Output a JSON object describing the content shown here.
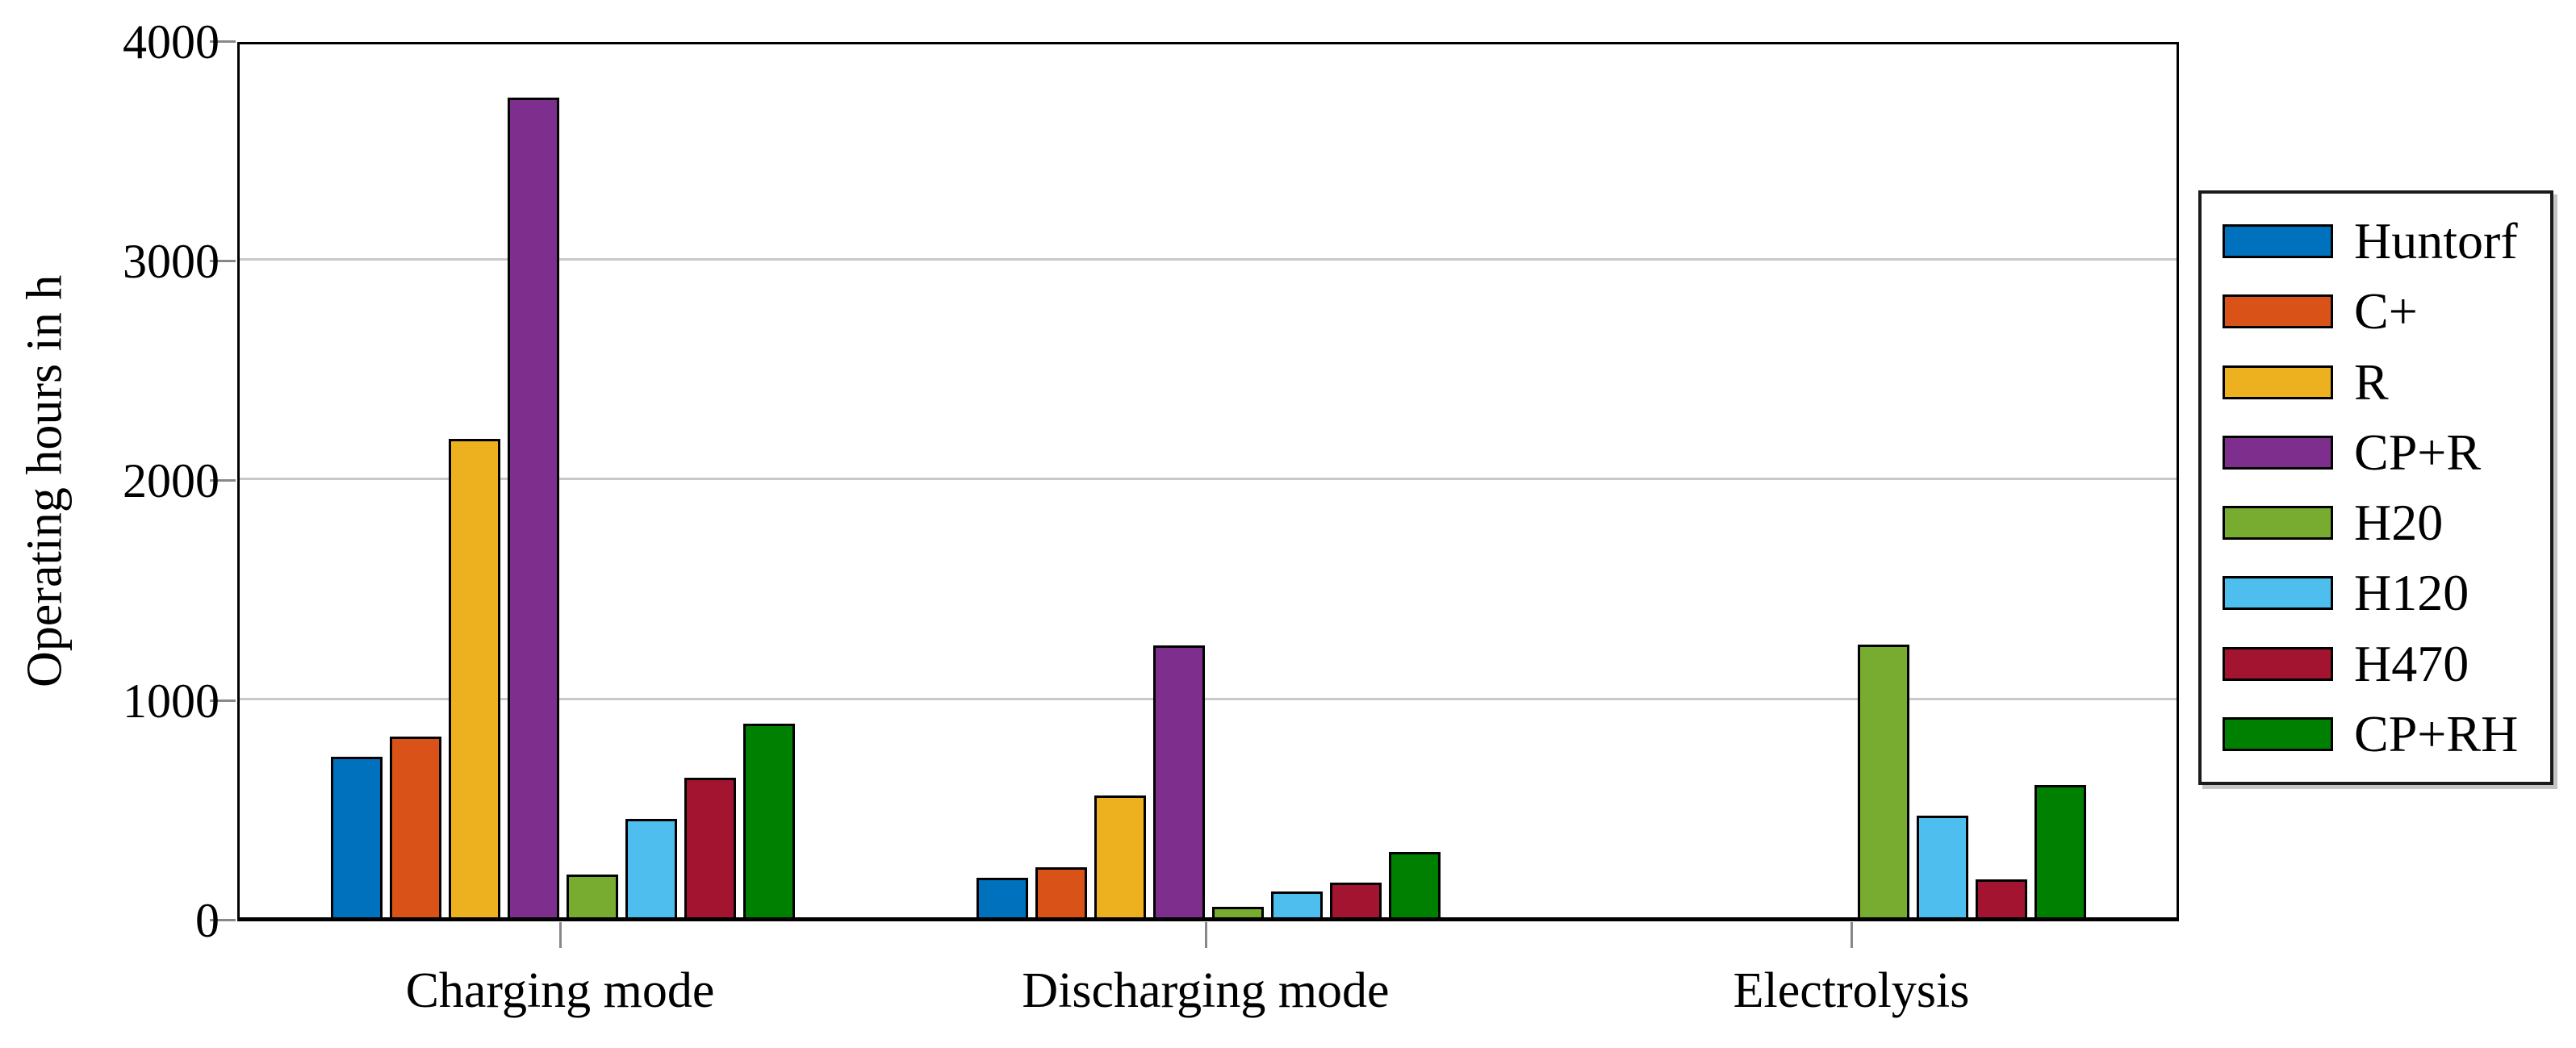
{
  "chart_data": {
    "type": "bar",
    "title": "",
    "ylabel": "Operating hours in h",
    "xlabel": "",
    "categories": [
      "Charging mode",
      "Discharging mode",
      "Electrolysis"
    ],
    "series": [
      {
        "name": "Huntorf",
        "color": "#0072BD",
        "values": [
          735,
          185,
          0
        ]
      },
      {
        "name": "C+",
        "color": "#D95319",
        "values": [
          825,
          230,
          0
        ]
      },
      {
        "name": "R",
        "color": "#EDB120",
        "values": [
          2180,
          560,
          0
        ]
      },
      {
        "name": "CP+R",
        "color": "#7E2F8E",
        "values": [
          3735,
          1240,
          0
        ]
      },
      {
        "name": "H20",
        "color": "#77AC30",
        "values": [
          200,
          50,
          1245
        ]
      },
      {
        "name": "H120",
        "color": "#4DBEEE",
        "values": [
          450,
          120,
          465
        ]
      },
      {
        "name": "H470",
        "color": "#A2142F",
        "values": [
          640,
          160,
          175
        ]
      },
      {
        "name": "CP+RH",
        "color": "#008000",
        "values": [
          885,
          300,
          605
        ]
      }
    ],
    "ylim": [
      0,
      4000
    ],
    "yticks": [
      0,
      1000,
      2000,
      3000,
      4000
    ],
    "gridlines_y": [
      1000,
      2000,
      3000
    ],
    "grid": "horizontal",
    "legend_position": "outside-right",
    "bar_edge_color": "#000000",
    "gridline_color": "#c9c9c9",
    "axis_color": "#000000"
  }
}
